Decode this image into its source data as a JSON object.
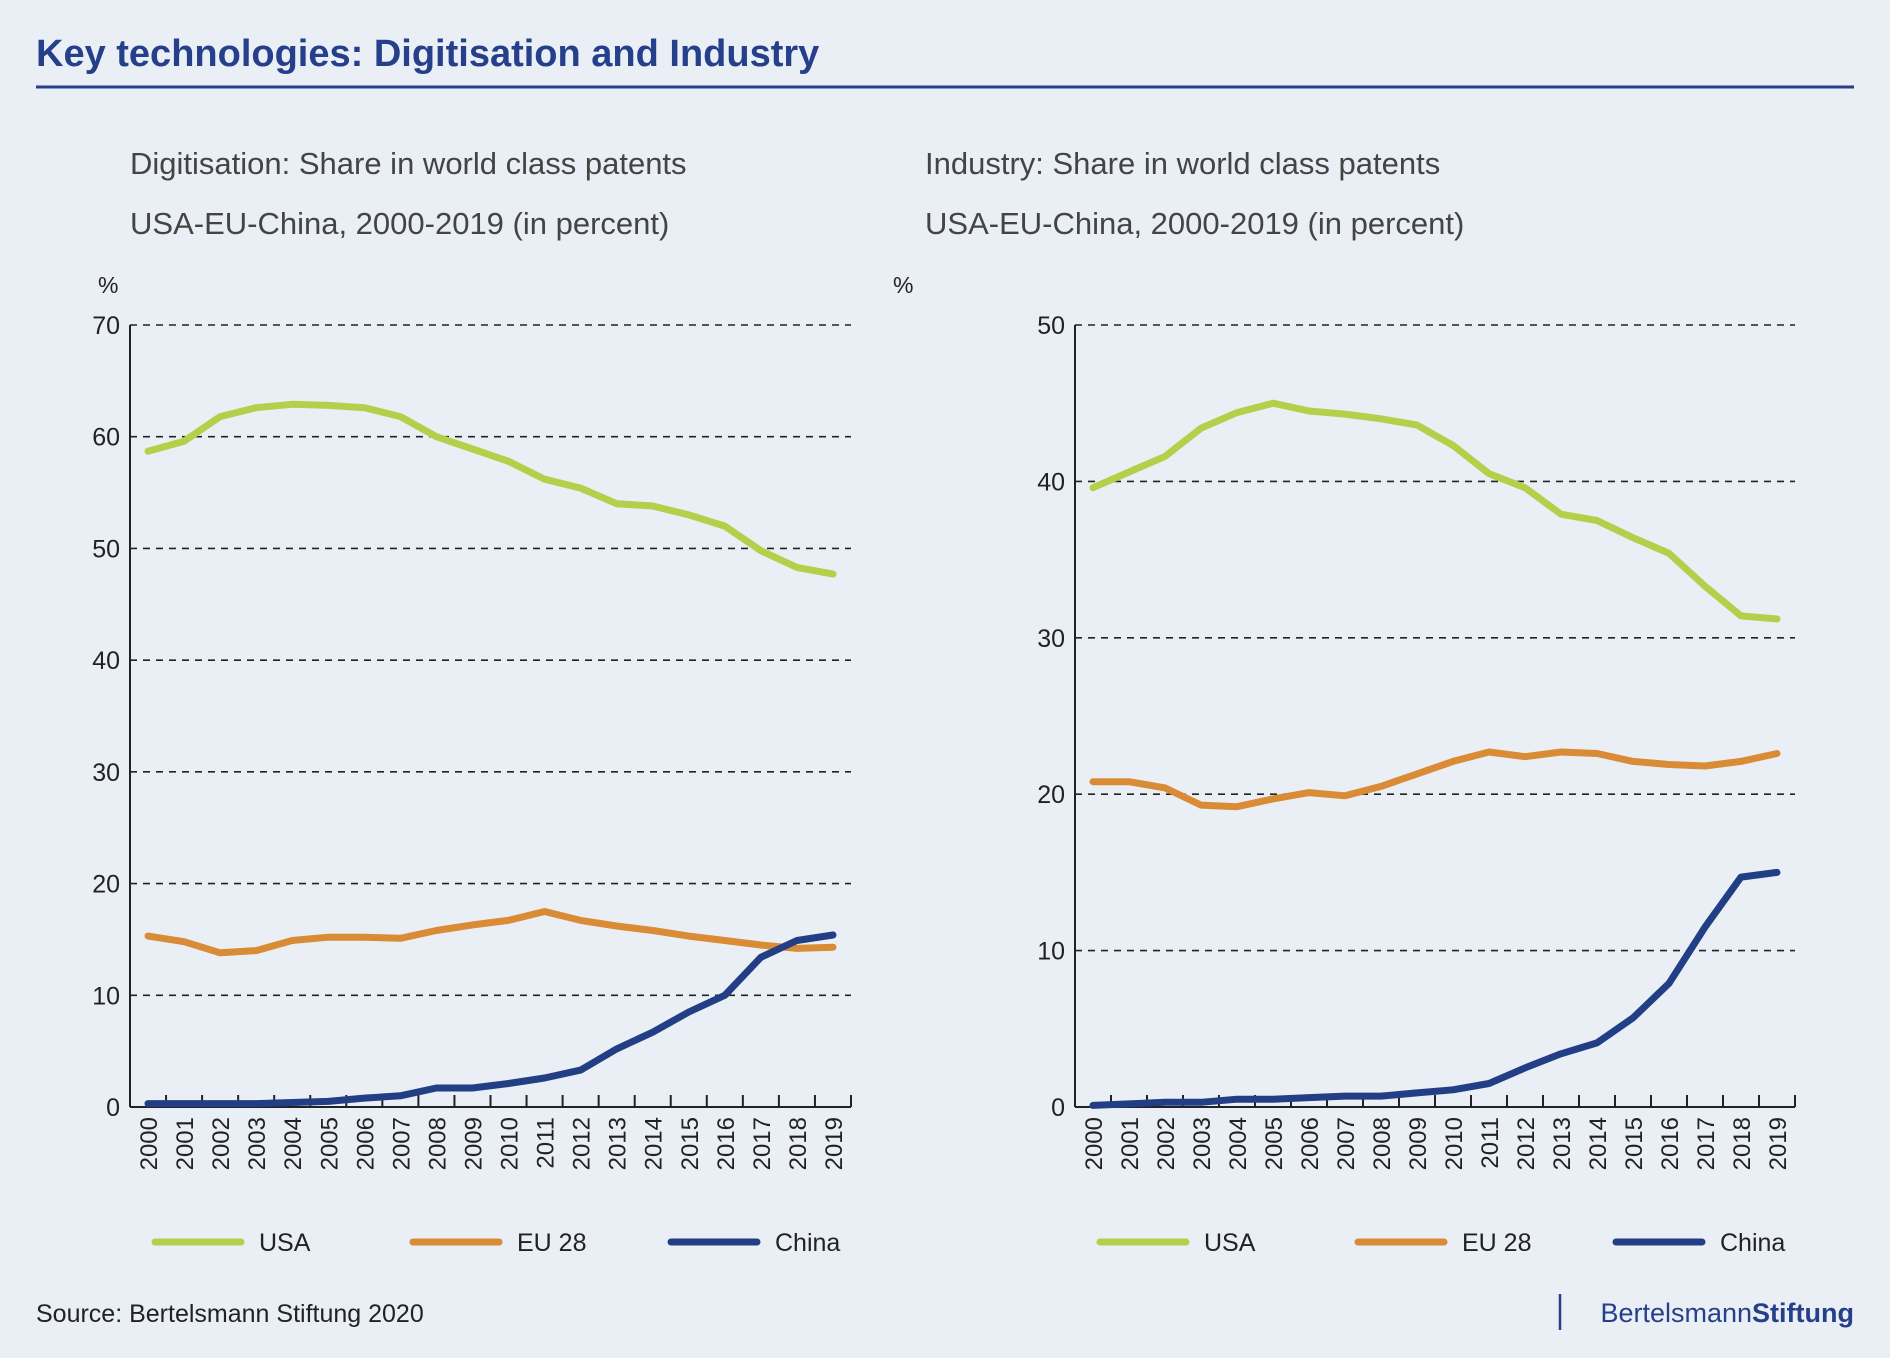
{
  "title": "Key technologies: Digitisation and Industry",
  "source": "Source: Bertelsmann Stiftung 2020",
  "logo": {
    "part1": "Bertelsmann",
    "part2": "Stiftung"
  },
  "colors": {
    "title": "#263f8a",
    "USA": "#b5cf4b",
    "EU 28": "#d98b35",
    "China": "#223f86"
  },
  "chart_data": [
    {
      "type": "line",
      "title": "Digitisation: Share in world class patents",
      "subtitle": "USA-EU-China, 2000-2019 (in percent)",
      "ylabel": "%",
      "ylim": [
        0,
        70
      ],
      "yticks": [
        0,
        10,
        20,
        30,
        40,
        50,
        60,
        70
      ],
      "grid": true,
      "legend": "bottom",
      "categories": [
        "2000",
        "2001",
        "2002",
        "2003",
        "2004",
        "2005",
        "2006",
        "2007",
        "2008",
        "2009",
        "2010",
        "2011",
        "2012",
        "2013",
        "2014",
        "2015",
        "2016",
        "2017",
        "2018",
        "2019"
      ],
      "series": [
        {
          "name": "USA",
          "values": [
            58.7,
            59.6,
            61.8,
            62.6,
            62.9,
            62.8,
            62.6,
            61.8,
            60.0,
            58.9,
            57.8,
            56.2,
            55.4,
            54.0,
            53.8,
            53.0,
            52.0,
            49.8,
            48.3,
            47.7
          ]
        },
        {
          "name": "EU 28",
          "values": [
            15.3,
            14.8,
            13.8,
            14.0,
            14.9,
            15.2,
            15.2,
            15.1,
            15.8,
            16.3,
            16.7,
            17.5,
            16.7,
            16.2,
            15.8,
            15.3,
            14.9,
            14.5,
            14.2,
            14.3
          ]
        },
        {
          "name": "China",
          "values": [
            0.3,
            0.3,
            0.3,
            0.3,
            0.4,
            0.5,
            0.8,
            1.0,
            1.7,
            1.7,
            2.1,
            2.6,
            3.3,
            5.2,
            6.7,
            8.5,
            10.0,
            13.4,
            14.9,
            15.4
          ]
        }
      ]
    },
    {
      "type": "line",
      "title": "Industry: Share in world class patents",
      "subtitle": "USA-EU-China, 2000-2019 (in percent)",
      "ylabel": "%",
      "ylim": [
        0,
        50
      ],
      "yticks": [
        0,
        10,
        20,
        30,
        40,
        50
      ],
      "grid": true,
      "legend": "bottom",
      "categories": [
        "2000",
        "2001",
        "2002",
        "2003",
        "2004",
        "2005",
        "2006",
        "2007",
        "2008",
        "2009",
        "2010",
        "2011",
        "2012",
        "2013",
        "2014",
        "2015",
        "2016",
        "2017",
        "2018",
        "2019"
      ],
      "series": [
        {
          "name": "USA",
          "values": [
            39.6,
            40.6,
            41.6,
            43.4,
            44.4,
            45.0,
            44.5,
            44.3,
            44.0,
            43.6,
            42.3,
            40.5,
            39.6,
            37.9,
            37.5,
            36.4,
            35.4,
            33.3,
            31.4,
            31.2
          ]
        },
        {
          "name": "EU 28",
          "values": [
            20.8,
            20.8,
            20.4,
            19.3,
            19.2,
            19.7,
            20.1,
            19.9,
            20.5,
            21.3,
            22.1,
            22.7,
            22.4,
            22.7,
            22.6,
            22.1,
            21.9,
            21.8,
            22.1,
            22.6
          ]
        },
        {
          "name": "China",
          "values": [
            0.1,
            0.2,
            0.3,
            0.3,
            0.5,
            0.5,
            0.6,
            0.7,
            0.7,
            0.9,
            1.1,
            1.5,
            2.5,
            3.4,
            4.1,
            5.7,
            7.9,
            11.5,
            14.7,
            15.0
          ]
        }
      ]
    }
  ]
}
